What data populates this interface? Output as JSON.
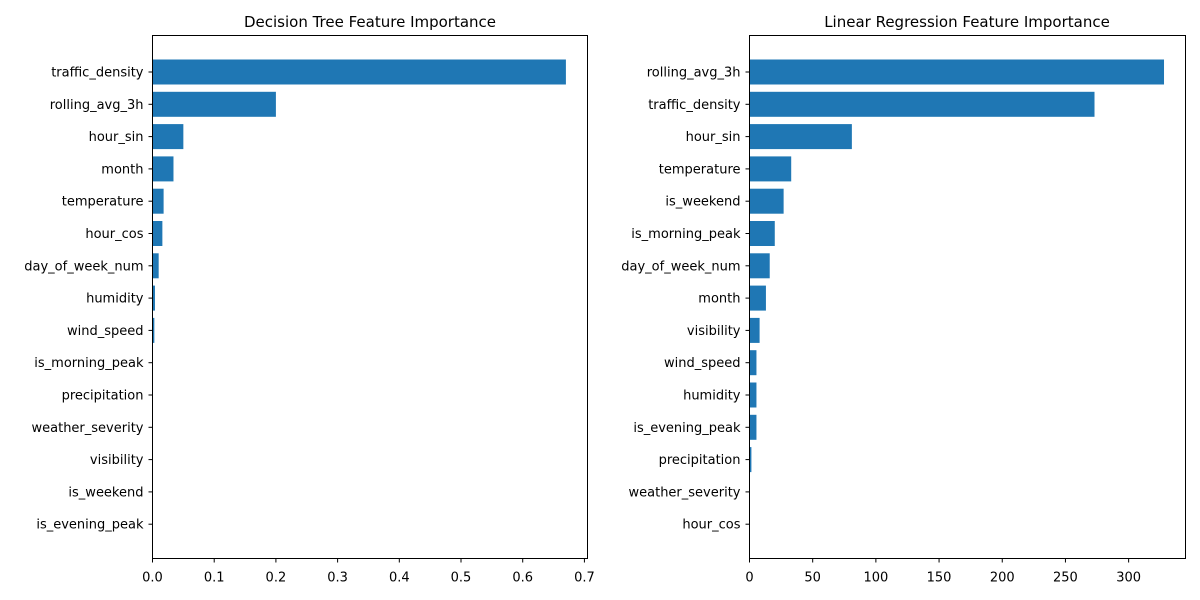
{
  "chart_data": [
    {
      "type": "bar",
      "orientation": "horizontal",
      "title": "Decision Tree Feature Importance",
      "xlabel": "",
      "ylabel": "",
      "categories": [
        "traffic_density",
        "rolling_avg_3h",
        "hour_sin",
        "month",
        "temperature",
        "hour_cos",
        "day_of_week_num",
        "humidity",
        "wind_speed",
        "is_morning_peak",
        "precipitation",
        "weather_severity",
        "visibility",
        "is_weekend",
        "is_evening_peak"
      ],
      "values": [
        0.67,
        0.2,
        0.05,
        0.034,
        0.018,
        0.016,
        0.01,
        0.004,
        0.003,
        0.0005,
        0.0003,
        0.0002,
        0.0002,
        0.0001,
        0.0001
      ],
      "xlim": [
        0,
        0.705
      ],
      "xticks": [
        "0.0",
        "0.1",
        "0.2",
        "0.3",
        "0.4",
        "0.5",
        "0.6",
        "0.7"
      ],
      "xtick_values": [
        0,
        0.1,
        0.2,
        0.3,
        0.4,
        0.5,
        0.6,
        0.7
      ],
      "color": "#1f77b4",
      "grid": false
    },
    {
      "type": "bar",
      "orientation": "horizontal",
      "title": "Linear Regression Feature Importance",
      "xlabel": "",
      "ylabel": "",
      "categories": [
        "rolling_avg_3h",
        "traffic_density",
        "hour_sin",
        "temperature",
        "is_weekend",
        "is_morning_peak",
        "day_of_week_num",
        "month",
        "visibility",
        "wind_speed",
        "humidity",
        "is_evening_peak",
        "precipitation",
        "weather_severity",
        "hour_cos"
      ],
      "values": [
        328,
        273,
        81,
        33,
        27,
        20,
        16,
        13,
        8,
        5.5,
        5.5,
        5.5,
        1.5,
        0.3,
        0.2
      ],
      "xlim": [
        0,
        345
      ],
      "xticks": [
        "0",
        "50",
        "100",
        "150",
        "200",
        "250",
        "300"
      ],
      "xtick_values": [
        0,
        50,
        100,
        150,
        200,
        250,
        300
      ],
      "color": "#1f77b4",
      "grid": false
    }
  ]
}
